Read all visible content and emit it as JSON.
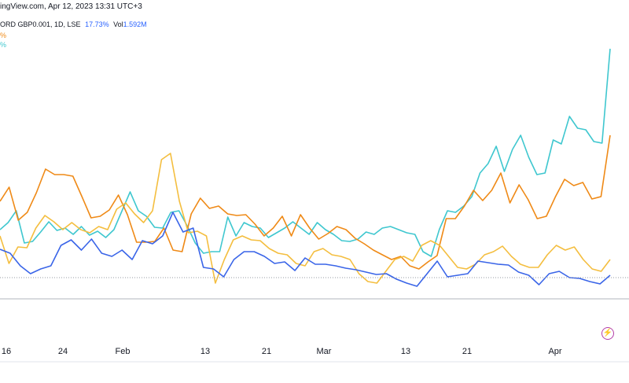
{
  "header": {
    "source_line": "ingView.com, Apr 12, 2023 13:31 UTC+3"
  },
  "legend": {
    "symbol_line": "ORD GBP0.001, 1D, LSE",
    "change_pct": "17.73%",
    "vol_label": "Vol",
    "vol_value": "1.592M",
    "partial_row2": "%",
    "partial_row3": "%"
  },
  "x_axis": {
    "labels": [
      "16",
      "24",
      "Feb",
      "13",
      "21",
      "Mar",
      "13",
      "21",
      "Apr"
    ]
  },
  "colors": {
    "cyan": "#3fc7cf",
    "orange": "#ef8a17",
    "yellow": "#f4be3f",
    "blue": "#3a65e8",
    "axis": "#b2b5be",
    "baseline": "#9598a1",
    "flash": "#b33fa8"
  },
  "icons": {
    "flash": "lightning-bolt-icon"
  },
  "chart_data": {
    "type": "line",
    "series": [
      {
        "color": "cyan",
        "values": [
          292,
          283,
          268,
          309,
          307,
          295,
          282,
          293,
          290,
          298,
          288,
          299,
          294,
          302,
          292,
          268,
          244,
          268,
          275,
          289,
          290,
          270,
          268,
          287,
          309,
          322,
          320,
          320,
          276,
          300,
          283,
          288,
          290,
          302,
          296,
          290,
          282,
          290,
          298,
          283,
          292,
          298,
          306,
          307,
          304,
          295,
          298,
          290,
          288,
          292,
          296,
          298,
          320,
          326,
          292,
          268,
          270,
          262,
          250,
          220,
          208,
          186,
          218,
          190,
          172,
          200,
          222,
          220,
          178,
          183,
          148,
          163,
          165,
          180,
          182,
          62
        ]
      },
      {
        "color": "orange",
        "values": [
          256,
          238,
          280,
          270,
          245,
          215,
          222,
          222,
          224,
          250,
          277,
          275,
          267,
          248,
          273,
          308,
          308,
          307,
          290,
          318,
          320,
          272,
          252,
          265,
          262,
          272,
          274,
          273,
          285,
          300,
          290,
          275,
          300,
          273,
          290,
          304,
          297,
          288,
          292,
          303,
          310,
          318,
          324,
          330,
          326,
          338,
          342,
          333,
          325,
          278,
          278,
          262,
          242,
          255,
          242,
          220,
          258,
          235,
          254,
          278,
          275,
          250,
          228,
          236,
          232,
          253,
          250,
          172
        ]
      },
      {
        "color": "yellow",
        "values": [
          300,
          335,
          314,
          315,
          290,
          274,
          282,
          292,
          283,
          292,
          296,
          288,
          292,
          266,
          258,
          272,
          283,
          268,
          203,
          195,
          256,
          296,
          294,
          300,
          360,
          330,
          305,
          300,
          305,
          306,
          316,
          322,
          324,
          335,
          338,
          320,
          316,
          324,
          326,
          330,
          348,
          358,
          360,
          345,
          330,
          326,
          332,
          312,
          306,
          312,
          326,
          340,
          342,
          336,
          324,
          320,
          313,
          326,
          336,
          340,
          340,
          324,
          312,
          318,
          314,
          330,
          342,
          345,
          330
        ]
      },
      {
        "color": "blue",
        "values": [
          317,
          322,
          338,
          348,
          342,
          338,
          312,
          305,
          318,
          304,
          322,
          326,
          318,
          330,
          306,
          310,
          300,
          270,
          295,
          290,
          340,
          342,
          352,
          330,
          320,
          320,
          326,
          335,
          333,
          344,
          328,
          336,
          336,
          338,
          341,
          343,
          346,
          349,
          348,
          355,
          360,
          364,
          348,
          332,
          352,
          350,
          348,
          332,
          334,
          336,
          337,
          346,
          350,
          362,
          348,
          345,
          353,
          354,
          358,
          361,
          350
        ]
      }
    ],
    "baseline": 353,
    "ylim": [
      40,
      380
    ],
    "x_labels": [
      "16",
      "24",
      "Feb",
      "13",
      "21",
      "Mar",
      "13",
      "21",
      "Apr"
    ],
    "title": "",
    "xlabel": "",
    "ylabel": "",
    "grid": false,
    "legend_position": "top-left"
  }
}
